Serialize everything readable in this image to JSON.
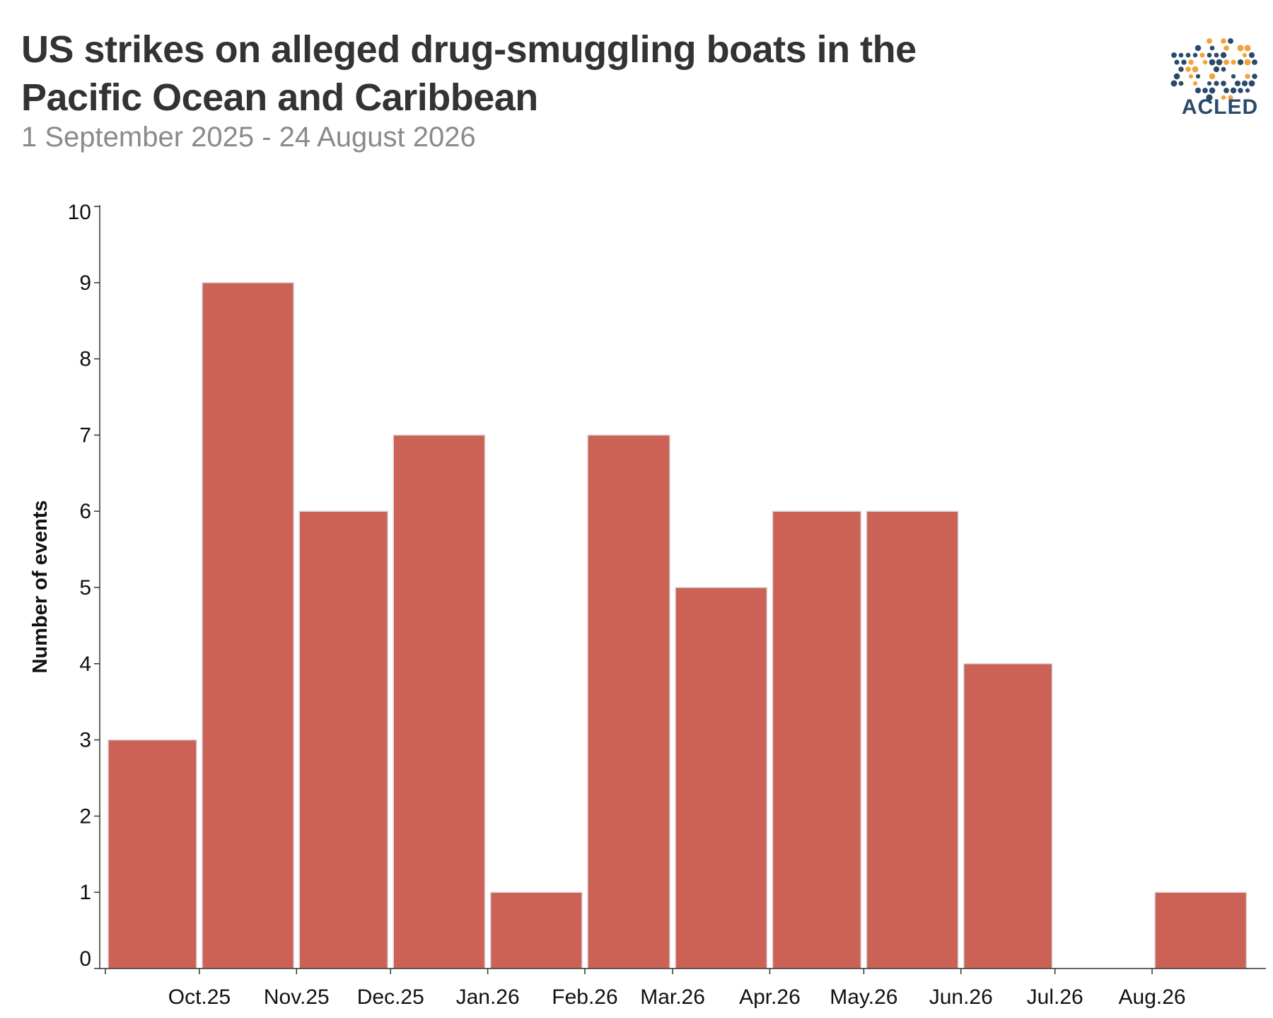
{
  "header": {
    "title": "US strikes on alleged drug-smuggling boats in the Pacific Ocean and Caribbean",
    "subtitle": "1 September 2025 - 24 August 2026",
    "logo_text": "ACLED"
  },
  "colors": {
    "bar": "#cc6156",
    "bar_stroke": "#d9d9d9",
    "axis": "#333333",
    "logo_blue": "#2a4a6b",
    "logo_orange": "#f2a33a"
  },
  "chart_data": {
    "type": "bar",
    "title": "US strikes on alleged drug-smuggling boats in the Pacific Ocean and Caribbean",
    "subtitle": "1 September 2025 - 24 August 2026",
    "xlabel": "",
    "ylabel": "Number of events",
    "ylim": [
      0,
      10
    ],
    "yticks": [
      "0",
      "1",
      "2",
      "3",
      "4",
      "5",
      "6",
      "7",
      "8",
      "9",
      "10"
    ],
    "xticks": [
      "Oct.25",
      "Nov.25",
      "Dec.25",
      "Jan.26",
      "Feb.26",
      "Mar.26",
      "Apr.26",
      "May.26",
      "Jun.26",
      "Jul.26",
      "Aug.26"
    ],
    "x_start": "2025-09-01",
    "x_end": "2026-08-31",
    "bars": [
      {
        "start": "2025-09-01",
        "end": "2025-10-01",
        "value": 3
      },
      {
        "start": "2025-10-01",
        "end": "2025-11-01",
        "value": 9
      },
      {
        "start": "2025-11-01",
        "end": "2025-12-01",
        "value": 6
      },
      {
        "start": "2025-12-01",
        "end": "2026-01-01",
        "value": 7
      },
      {
        "start": "2026-01-01",
        "end": "2026-02-01",
        "value": 1
      },
      {
        "start": "2026-02-01",
        "end": "2026-03-01",
        "value": 7
      },
      {
        "start": "2026-03-01",
        "end": "2026-04-01",
        "value": 5
      },
      {
        "start": "2026-04-01",
        "end": "2026-05-01",
        "value": 6
      },
      {
        "start": "2026-05-01",
        "end": "2026-06-01",
        "value": 6
      },
      {
        "start": "2026-06-01",
        "end": "2026-07-01",
        "value": 4
      },
      {
        "start": "2026-07-01",
        "end": "2026-08-01",
        "value": 0
      },
      {
        "start": "2026-08-01",
        "end": "2026-09-01",
        "value": 1
      }
    ],
    "grid": false,
    "legend": "none"
  }
}
